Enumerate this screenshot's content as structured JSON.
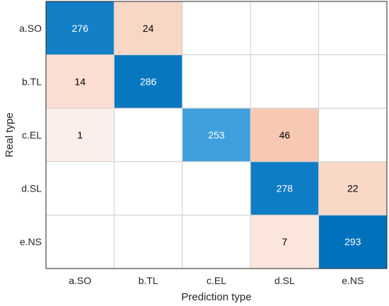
{
  "chart_data": {
    "type": "heatmap",
    "title": "",
    "xlabel": "Prediction type",
    "ylabel": "Real type",
    "x_categories": [
      "a.SO",
      "b.TL",
      "c.EL",
      "d.SL",
      "e.NS"
    ],
    "y_categories": [
      "a.SO",
      "b.TL",
      "c.EL",
      "d.SL",
      "e.NS"
    ],
    "values": [
      [
        276,
        24,
        0,
        0,
        0
      ],
      [
        14,
        286,
        0,
        0,
        0
      ],
      [
        1,
        0,
        253,
        46,
        0
      ],
      [
        0,
        0,
        0,
        278,
        22
      ],
      [
        0,
        0,
        0,
        7,
        293
      ]
    ],
    "show_zero_labels": false,
    "colors": {
      "correct_high": "#0072bd",
      "correct_low": "#3fa0dd",
      "incorrect_high": "#f7c9b3",
      "incorrect_low": "#fdf3ef",
      "empty": "#ffffff",
      "grid": "#d0d0d0",
      "axis": "#262626",
      "text_dark": "#000000",
      "text_light": "#ffffff"
    }
  }
}
